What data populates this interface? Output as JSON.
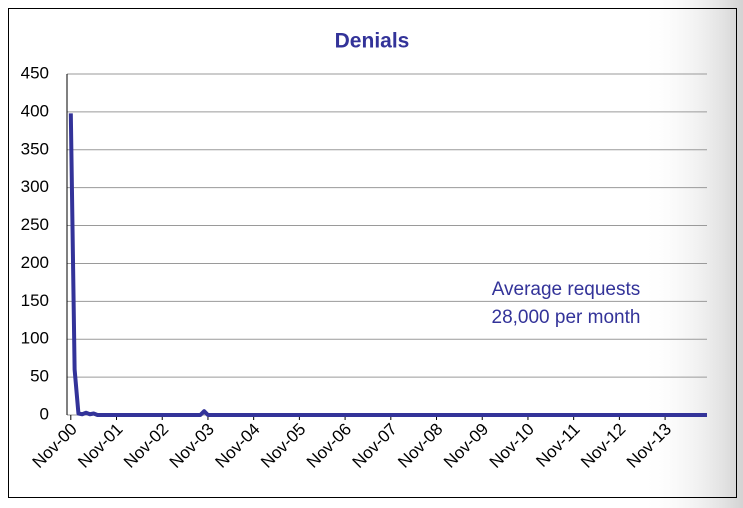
{
  "chart_data": {
    "type": "line",
    "title": "Denials",
    "annotation": [
      "Average requests",
      "28,000 per month"
    ],
    "x": [
      "2000-11",
      "2000-12",
      "2001-01",
      "2001-02",
      "2001-03",
      "2001-04",
      "2001-05",
      "2001-06",
      "2003-09",
      "2003-10",
      "2003-11",
      "2014-10"
    ],
    "series": [
      {
        "name": "Denials",
        "color": "#333399",
        "values": [
          398,
          60,
          2,
          1,
          3,
          1,
          2,
          0,
          0,
          5,
          0,
          0
        ]
      }
    ],
    "xlim": [
      "2000-10",
      "2014-10"
    ],
    "xticks": [
      {
        "value": "2000-11",
        "label": "Nov-00"
      },
      {
        "value": "2001-11",
        "label": "Nov-01"
      },
      {
        "value": "2002-11",
        "label": "Nov-02"
      },
      {
        "value": "2003-11",
        "label": "Nov-03"
      },
      {
        "value": "2004-11",
        "label": "Nov-04"
      },
      {
        "value": "2005-11",
        "label": "Nov-05"
      },
      {
        "value": "2006-11",
        "label": "Nov-06"
      },
      {
        "value": "2007-11",
        "label": "Nov-07"
      },
      {
        "value": "2008-11",
        "label": "Nov-08"
      },
      {
        "value": "2009-11",
        "label": "Nov-09"
      },
      {
        "value": "2010-11",
        "label": "Nov-10"
      },
      {
        "value": "2011-11",
        "label": "Nov-11"
      },
      {
        "value": "2012-11",
        "label": "Nov-12"
      },
      {
        "value": "2013-11",
        "label": "Nov-13"
      }
    ],
    "ylim": [
      0,
      450
    ],
    "yticks": [
      0,
      50,
      100,
      150,
      200,
      250,
      300,
      350,
      400,
      450
    ],
    "grid": true
  }
}
